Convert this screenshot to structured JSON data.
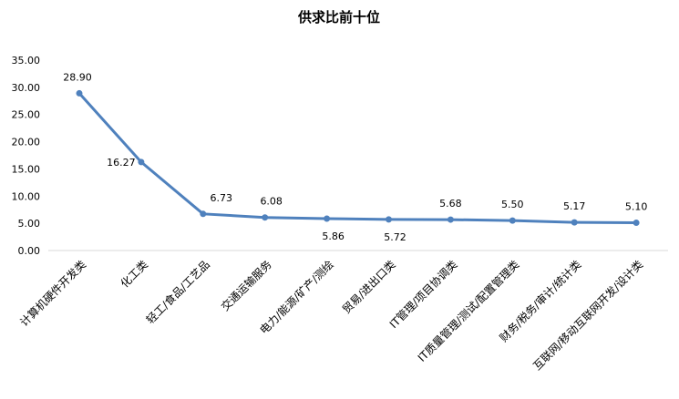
{
  "chart_data": {
    "type": "line",
    "title": "供求比前十位",
    "categories": [
      "计算机硬件开发类",
      "化工类",
      "轻工/食品/工艺品",
      "交通运输服务",
      "电力/能源/矿产/测绘",
      "贸易/进出口类",
      "IT管理/项目协调类",
      "IT质量管理/测试/配置管理类",
      "财务/税务/审计/统计类",
      "互联网/移动互联网开发/设计类"
    ],
    "values": [
      28.9,
      16.27,
      6.73,
      6.08,
      5.86,
      5.72,
      5.68,
      5.5,
      5.17,
      5.1
    ],
    "data_labels": [
      "28.90",
      "16.27",
      "6.73",
      "6.08",
      "5.86",
      "5.72",
      "5.68",
      "5.50",
      "5.17",
      "5.10"
    ],
    "ylim": [
      0,
      35
    ],
    "yticks": [
      "0.00",
      "5.00",
      "10.00",
      "15.00",
      "20.00",
      "25.00",
      "30.00",
      "35.00"
    ],
    "grid": false,
    "legend": "none",
    "line_color": "#4f81bd"
  }
}
